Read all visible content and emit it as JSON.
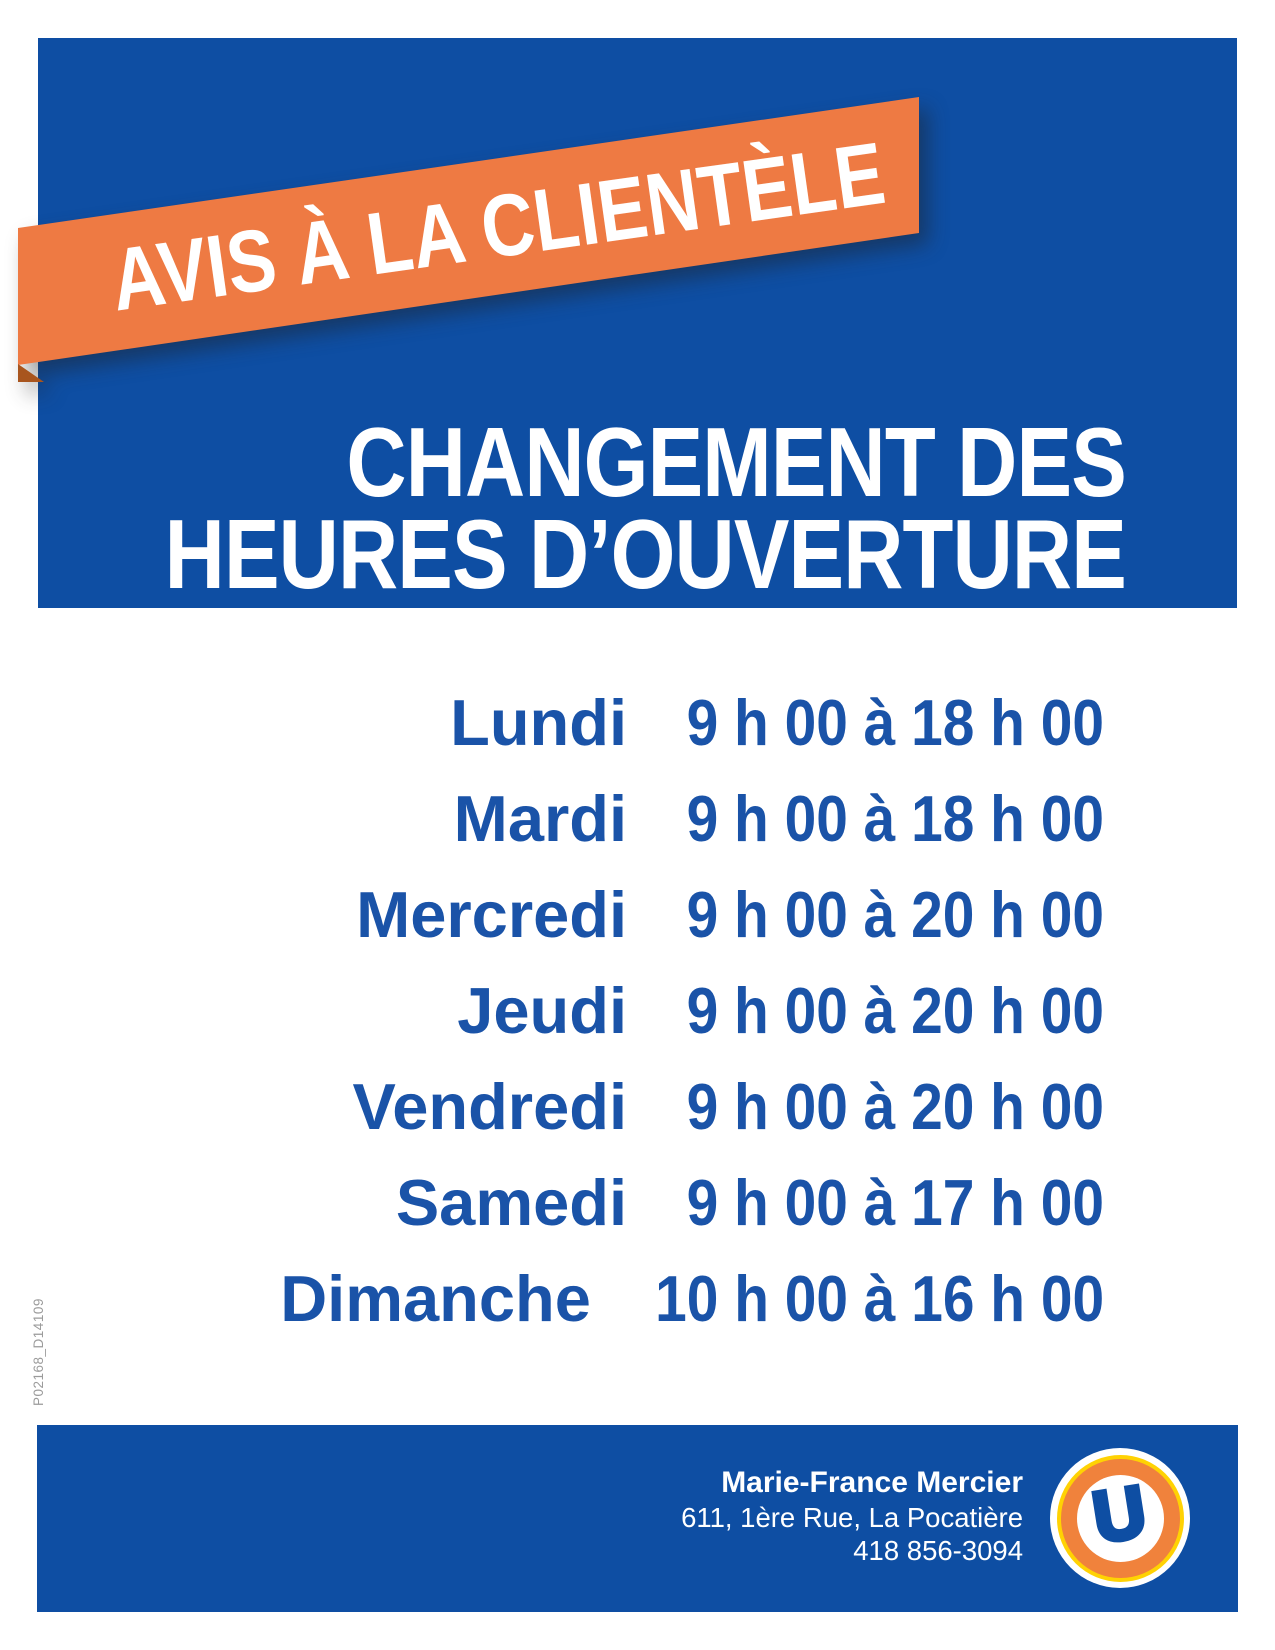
{
  "banner": {
    "label": "AVIS À LA CLIENTÈLE",
    "color": "#EE7A43",
    "fold_color": "#A8551E"
  },
  "header": {
    "title_line1": "CHANGEMENT DES",
    "title_line2": "HEURES D’OUVERTURE",
    "background": "#0E4EA3"
  },
  "schedule": {
    "text_color": "#1A53A8",
    "rows": [
      {
        "day": "Lundi",
        "hours": "9 h 00 à 18 h 00"
      },
      {
        "day": "Mardi",
        "hours": "9 h 00 à 18 h 00"
      },
      {
        "day": "Mercredi",
        "hours": "9 h 00 à 20 h 00"
      },
      {
        "day": "Jeudi",
        "hours": "9 h 00 à 20 h 00"
      },
      {
        "day": "Vendredi",
        "hours": "9 h 00 à 20 h 00"
      },
      {
        "day": "Samedi",
        "hours": "9 h 00 à 17 h 00"
      },
      {
        "day": "Dimanche",
        "hours": "10 h 00 à 16 h 00"
      }
    ]
  },
  "side_code": "P02168_D14109",
  "footer": {
    "name": "Marie-France Mercier",
    "address": "611, 1ère Rue, La Pocatière",
    "phone": "418 856-3094",
    "background": "#0E4EA3",
    "logo": {
      "letter": "U",
      "orange": "#F0823C",
      "yellow": "#FFD203",
      "blue": "#0E4EA3"
    }
  }
}
